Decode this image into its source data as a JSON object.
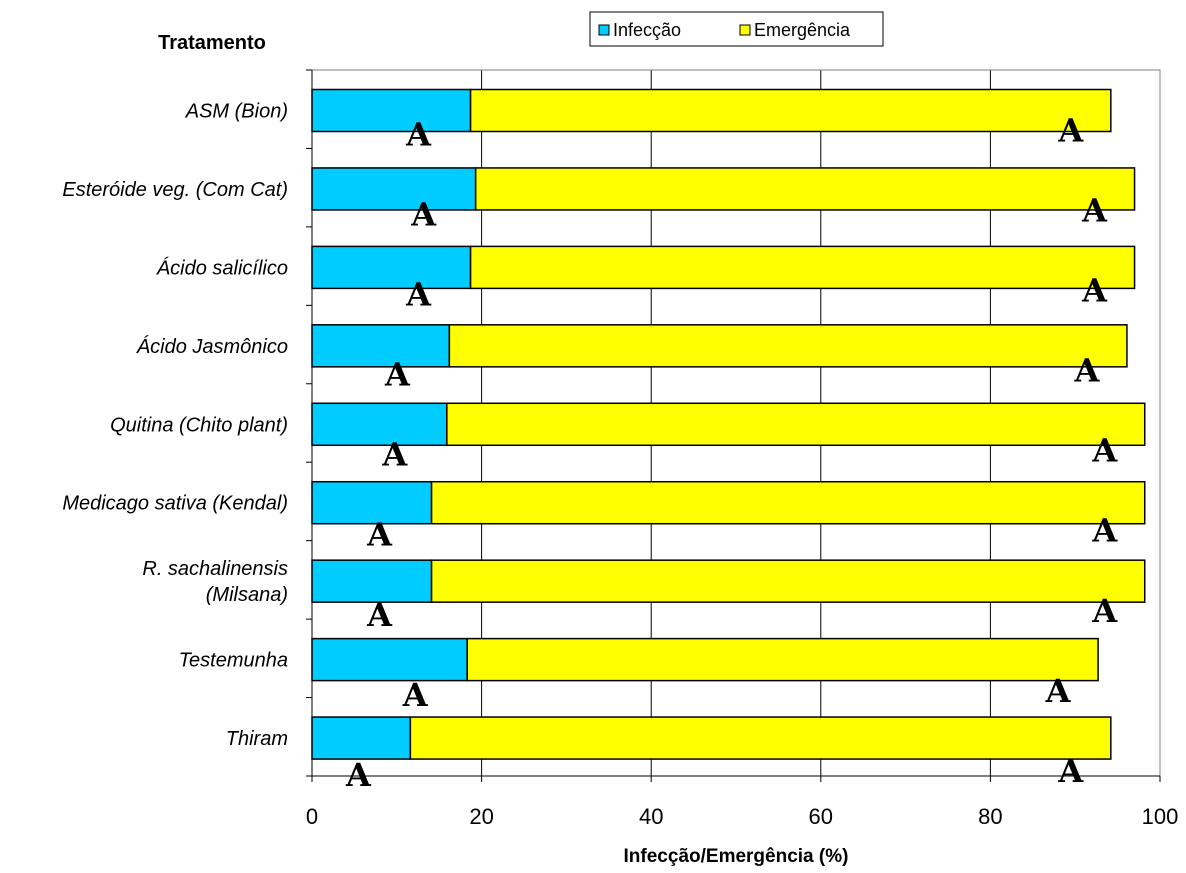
{
  "chart_data": {
    "type": "bar",
    "orientation": "horizontal",
    "stacked": true,
    "category_axis_title": "Tratamento",
    "xlabel": "Infecção/Emergência (%)",
    "xlim": [
      0,
      100
    ],
    "xticks": [
      0,
      20,
      40,
      60,
      80,
      100
    ],
    "grid": "vertical",
    "legend": "top-center",
    "categories": [
      "ASM (Bion)",
      "Esteróide veg. (Com Cat)",
      "Ácido salicílico",
      "Ácido Jasmônico",
      "Quitina (Chito plant)",
      "Medicago sativa (Kendal)",
      "R. sachalinensis (Milsana)",
      "Testemunha",
      "Thiram"
    ],
    "category_lines": [
      [
        "ASM (Bion)"
      ],
      [
        "Esteróide veg. (Com Cat)"
      ],
      [
        "Ácido salicílico"
      ],
      [
        "Ácido Jasmônico"
      ],
      [
        "Quitina (Chito plant)"
      ],
      [
        "Medicago sativa (Kendal)"
      ],
      [
        "R. sachalinensis",
        "(Milsana)"
      ],
      [
        "Testemunha"
      ],
      [
        "Thiram"
      ]
    ],
    "series": [
      {
        "name": "Infecção",
        "color": "#00ccff",
        "values": [
          18.7,
          19.3,
          18.7,
          16.2,
          15.9,
          14.1,
          14.1,
          18.3,
          11.6
        ],
        "significance": [
          "A",
          "A",
          "A",
          "A",
          "A",
          "A",
          "A",
          "A",
          "A"
        ]
      },
      {
        "name": "Emergência",
        "color": "#ffff00",
        "values": [
          75.5,
          77.7,
          78.3,
          79.9,
          82.3,
          84.1,
          84.1,
          74.4,
          82.6
        ],
        "significance": [
          "A",
          "A",
          "A",
          "A",
          "A",
          "A",
          "A",
          "A",
          "A"
        ]
      }
    ]
  }
}
